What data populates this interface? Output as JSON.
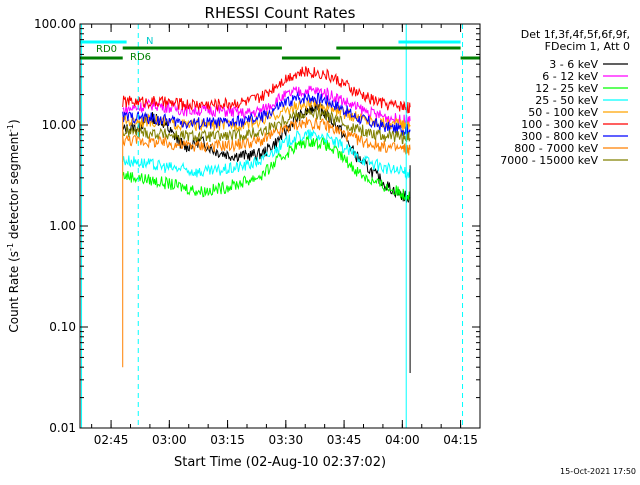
{
  "chart_data": {
    "type": "line",
    "title": "RHESSI Count Rates",
    "xlabel": "Start Time (02-Aug-10 02:37:02)",
    "ylabel_main": "Count Rate (s",
    "ylabel_sup1": "-1",
    "ylabel_mid": " detector segment",
    "ylabel_sup2": "-1",
    "ylabel_end": ")",
    "xlim_min": [
      37.0,
      80.0
    ],
    "ylim": [
      0.01,
      100
    ],
    "yscale": "log",
    "y_ticks": [
      {
        "value": 100,
        "label": "100.00"
      },
      {
        "value": 10,
        "label": "10.00"
      },
      {
        "value": 1,
        "label": "1.00"
      },
      {
        "value": 0.1,
        "label": "0.10"
      },
      {
        "value": 0.01,
        "label": "0.01"
      }
    ],
    "x_ticks": [
      {
        "value": 45,
        "label": "02:45"
      },
      {
        "value": 60,
        "label": "03:00"
      },
      {
        "value": 75,
        "label": "03:15"
      },
      {
        "value": 90,
        "label": "03:30"
      },
      {
        "value": 105,
        "label": "03:45"
      },
      {
        "value": 120,
        "label": "04:00"
      },
      {
        "value": 135,
        "label": "04:15"
      }
    ],
    "x_range": [
      37.0,
      140.0
    ],
    "legend": {
      "placement": "right",
      "header": [
        "Det 1f,3f,4f,5f,6f,9f,",
        "FDecim 1, Att 0"
      ]
    },
    "series": [
      {
        "name": "3 - 6 keV",
        "color": "#000000",
        "points": [
          [
            48,
            9
          ],
          [
            52,
            9.5
          ],
          [
            55,
            12
          ],
          [
            58,
            11
          ],
          [
            61,
            8
          ],
          [
            64,
            6
          ],
          [
            68,
            7
          ],
          [
            72,
            5.5
          ],
          [
            76,
            5
          ],
          [
            80,
            5
          ],
          [
            84,
            5.2
          ],
          [
            88,
            7
          ],
          [
            92,
            11
          ],
          [
            96,
            14
          ],
          [
            98,
            16
          ],
          [
            100,
            13
          ],
          [
            104,
            9
          ],
          [
            108,
            5
          ],
          [
            112,
            3.5
          ],
          [
            116,
            2.5
          ],
          [
            120,
            2.0
          ],
          [
            122,
            1.9
          ]
        ]
      },
      {
        "name": "6 - 12 keV",
        "color": "#ff00ff",
        "points": [
          [
            48,
            14
          ],
          [
            52,
            15
          ],
          [
            56,
            16
          ],
          [
            60,
            15
          ],
          [
            64,
            14
          ],
          [
            68,
            14
          ],
          [
            72,
            14
          ],
          [
            76,
            13.5
          ],
          [
            80,
            13
          ],
          [
            84,
            14
          ],
          [
            88,
            18
          ],
          [
            92,
            21
          ],
          [
            96,
            22
          ],
          [
            100,
            21
          ],
          [
            104,
            18
          ],
          [
            108,
            15
          ],
          [
            112,
            13
          ],
          [
            116,
            12
          ],
          [
            120,
            11
          ],
          [
            122,
            11
          ]
        ]
      },
      {
        "name": "12 - 25 keV",
        "color": "#00ff00",
        "points": [
          [
            48,
            3.2
          ],
          [
            52,
            3.0
          ],
          [
            56,
            2.8
          ],
          [
            60,
            2.6
          ],
          [
            64,
            2.4
          ],
          [
            68,
            2.2
          ],
          [
            72,
            2.3
          ],
          [
            76,
            2.5
          ],
          [
            80,
            2.8
          ],
          [
            84,
            3.2
          ],
          [
            88,
            4.5
          ],
          [
            92,
            6.0
          ],
          [
            96,
            7.0
          ],
          [
            100,
            6.5
          ],
          [
            104,
            5.0
          ],
          [
            108,
            3.6
          ],
          [
            112,
            2.8
          ],
          [
            116,
            2.4
          ],
          [
            120,
            2.1
          ],
          [
            122,
            2.0
          ]
        ]
      },
      {
        "name": "25 - 50 keV",
        "color": "#00ffff",
        "points": [
          [
            48,
            4.5
          ],
          [
            52,
            4.3
          ],
          [
            56,
            4.0
          ],
          [
            60,
            3.8
          ],
          [
            64,
            3.6
          ],
          [
            68,
            3.4
          ],
          [
            72,
            3.5
          ],
          [
            76,
            3.7
          ],
          [
            80,
            4.0
          ],
          [
            84,
            4.5
          ],
          [
            88,
            6.0
          ],
          [
            92,
            7.5
          ],
          [
            96,
            8.0
          ],
          [
            100,
            7.6
          ],
          [
            104,
            6.3
          ],
          [
            108,
            5.0
          ],
          [
            112,
            4.2
          ],
          [
            116,
            3.7
          ],
          [
            120,
            3.4
          ],
          [
            122,
            3.3
          ]
        ]
      },
      {
        "name": "50 - 100 keV",
        "color": "#ffa500",
        "points": [
          [
            48,
            11
          ],
          [
            52,
            11
          ],
          [
            56,
            11
          ],
          [
            60,
            10.5
          ],
          [
            64,
            10
          ],
          [
            68,
            10
          ],
          [
            72,
            10
          ],
          [
            76,
            10
          ],
          [
            80,
            10.5
          ],
          [
            84,
            11
          ],
          [
            88,
            13
          ],
          [
            92,
            15
          ],
          [
            96,
            16
          ],
          [
            100,
            15.5
          ],
          [
            104,
            13.5
          ],
          [
            108,
            12
          ],
          [
            112,
            11
          ],
          [
            116,
            10.5
          ],
          [
            120,
            10
          ],
          [
            122,
            10
          ]
        ]
      },
      {
        "name": "100 - 300 keV",
        "color": "#ff0000",
        "points": [
          [
            48,
            17
          ],
          [
            52,
            17
          ],
          [
            56,
            17
          ],
          [
            60,
            16.5
          ],
          [
            64,
            16
          ],
          [
            68,
            16
          ],
          [
            72,
            16
          ],
          [
            76,
            16.5
          ],
          [
            80,
            17
          ],
          [
            84,
            19
          ],
          [
            88,
            26
          ],
          [
            92,
            32
          ],
          [
            96,
            34
          ],
          [
            100,
            32
          ],
          [
            104,
            27
          ],
          [
            108,
            21
          ],
          [
            112,
            18
          ],
          [
            116,
            16
          ],
          [
            120,
            15.5
          ],
          [
            122,
            15
          ]
        ]
      },
      {
        "name": "300 - 800 keV",
        "color": "#0000ff",
        "points": [
          [
            48,
            12
          ],
          [
            52,
            12
          ],
          [
            56,
            11.5
          ],
          [
            60,
            11
          ],
          [
            64,
            10.5
          ],
          [
            68,
            10.5
          ],
          [
            72,
            10.5
          ],
          [
            76,
            10.5
          ],
          [
            80,
            11
          ],
          [
            84,
            12
          ],
          [
            88,
            15
          ],
          [
            92,
            18
          ],
          [
            96,
            19
          ],
          [
            100,
            18
          ],
          [
            104,
            15
          ],
          [
            108,
            12
          ],
          [
            112,
            10.5
          ],
          [
            116,
            9.5
          ],
          [
            120,
            9
          ],
          [
            122,
            9
          ]
        ]
      },
      {
        "name": "800 - 7000 keV",
        "color": "#ff8000",
        "points": [
          [
            48,
            7.2
          ],
          [
            52,
            7.0
          ],
          [
            56,
            6.8
          ],
          [
            60,
            6.5
          ],
          [
            64,
            6.3
          ],
          [
            68,
            6.2
          ],
          [
            72,
            6.2
          ],
          [
            76,
            6.3
          ],
          [
            80,
            6.6
          ],
          [
            84,
            7.0
          ],
          [
            88,
            8.5
          ],
          [
            92,
            10
          ],
          [
            96,
            10.5
          ],
          [
            100,
            10
          ],
          [
            104,
            8.5
          ],
          [
            108,
            7.2
          ],
          [
            112,
            6.5
          ],
          [
            116,
            6.0
          ],
          [
            120,
            5.8
          ],
          [
            122,
            5.7
          ]
        ]
      },
      {
        "name": "7000 - 15000 keV",
        "color": "#808000",
        "points": [
          [
            48,
            8.5
          ],
          [
            52,
            8.5
          ],
          [
            56,
            8.3
          ],
          [
            60,
            8.0
          ],
          [
            64,
            7.8
          ],
          [
            68,
            7.7
          ],
          [
            72,
            7.7
          ],
          [
            76,
            7.8
          ],
          [
            80,
            8.1
          ],
          [
            84,
            8.6
          ],
          [
            88,
            10.5
          ],
          [
            92,
            12.5
          ],
          [
            96,
            13
          ],
          [
            100,
            12.5
          ],
          [
            104,
            10.8
          ],
          [
            108,
            9.2
          ],
          [
            112,
            8.3
          ],
          [
            116,
            7.8
          ],
          [
            120,
            7.5
          ],
          [
            122,
            7.4
          ]
        ]
      }
    ],
    "annotations": {
      "rd0_label": "RD0",
      "rd6_label": "RD6",
      "n_label": "N",
      "timestamp": "15-Oct-2021 17:50"
    },
    "flag_bars": {
      "rd0": [
        [
          48,
          89
        ],
        [
          103,
          135
        ]
      ],
      "rd6": [
        [
          37,
          48
        ],
        [
          89,
          104
        ],
        [
          135,
          140
        ]
      ],
      "n": [
        [
          37,
          49
        ],
        [
          119,
          135
        ]
      ]
    },
    "vlines": {
      "solid": [
        37.4,
        121
      ],
      "dashed": [
        52,
        135.5
      ]
    },
    "colors": {
      "flag_green": "#007f00",
      "cyan": "#00ffff",
      "axis": "#000000"
    }
  }
}
